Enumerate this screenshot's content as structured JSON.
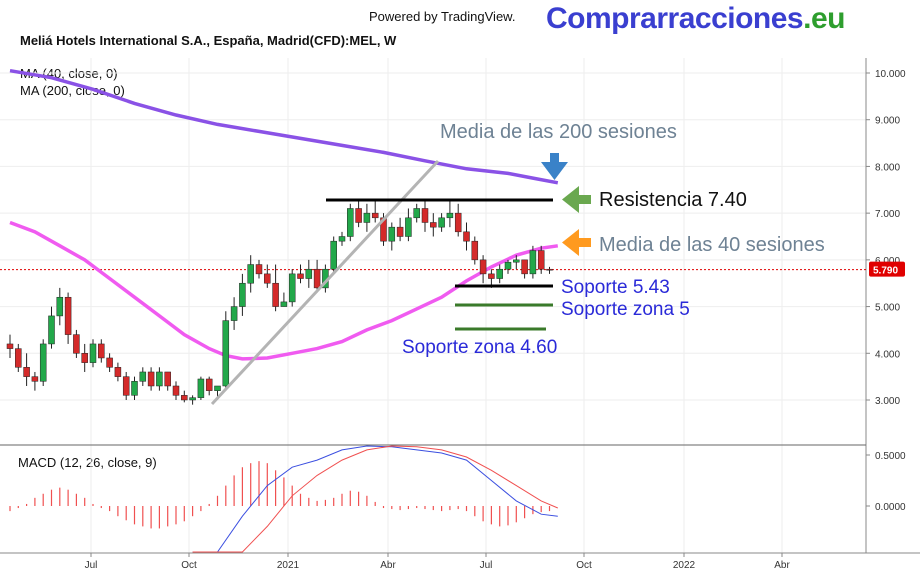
{
  "header": {
    "powered_by": "Powered by TradingView.",
    "brand_main": "Comprarracciones",
    "brand_tld": ".eu",
    "symbol": "Meliá Hotels International S.A., España, Madrid(CFD):MEL, W",
    "ma40_label": "MA (40, close, 0)",
    "ma200_label": "MA (200, close, 0)",
    "macd_label": "MACD (12, 26, close, 9)"
  },
  "colors": {
    "ma200": "#8a52e6",
    "ma40": "#f05bf0",
    "up": "#22a84a",
    "down": "#d42a2a",
    "last_price": "#e00000",
    "macd_line": "#3b4fe0",
    "signal_line": "#f05050",
    "arrow_blue": "#3a82c8",
    "arrow_green": "#6aa84f",
    "arrow_orange": "#ff9a1f",
    "support_green": "#3a7a2a"
  },
  "chart_data": {
    "type": "candlestick",
    "price_axis": {
      "ticks": [
        "10.000",
        "9.000",
        "8.000",
        "7.000",
        "6.000",
        "5.000",
        "4.000",
        "3.000"
      ],
      "values": [
        10,
        9,
        8,
        7,
        6,
        5,
        4,
        3
      ],
      "ylim": [
        2.6,
        10.2
      ]
    },
    "macd_axis": {
      "ticks": [
        "0.5000",
        "0.0000"
      ],
      "values": [
        0.5,
        0.0
      ]
    },
    "time_axis": {
      "labels": [
        "Jul",
        "Oct",
        "2021",
        "Abr",
        "Jul",
        "Oct",
        "2022",
        "Abr"
      ]
    },
    "last_price": {
      "label": "5.790",
      "value": 5.79
    },
    "candles": [
      [
        4.2,
        4.4,
        3.9,
        4.1
      ],
      [
        4.1,
        4.2,
        3.6,
        3.7
      ],
      [
        3.7,
        4.0,
        3.3,
        3.5
      ],
      [
        3.5,
        3.6,
        3.2,
        3.4
      ],
      [
        3.4,
        4.3,
        3.3,
        4.2
      ],
      [
        4.2,
        5.0,
        4.1,
        4.8
      ],
      [
        4.8,
        5.4,
        4.6,
        5.2
      ],
      [
        5.2,
        5.3,
        4.2,
        4.4
      ],
      [
        4.4,
        4.5,
        3.9,
        4.0
      ],
      [
        4.0,
        4.2,
        3.6,
        3.8
      ],
      [
        3.8,
        4.3,
        3.7,
        4.2
      ],
      [
        4.2,
        4.3,
        3.8,
        3.9
      ],
      [
        3.9,
        4.0,
        3.6,
        3.7
      ],
      [
        3.7,
        3.8,
        3.4,
        3.5
      ],
      [
        3.5,
        3.6,
        3.0,
        3.1
      ],
      [
        3.1,
        3.5,
        3.0,
        3.4
      ],
      [
        3.4,
        3.7,
        3.3,
        3.6
      ],
      [
        3.6,
        3.7,
        3.2,
        3.3
      ],
      [
        3.3,
        3.7,
        3.2,
        3.6
      ],
      [
        3.6,
        3.6,
        3.2,
        3.3
      ],
      [
        3.3,
        3.4,
        3.0,
        3.1
      ],
      [
        3.1,
        3.2,
        2.95,
        3.0
      ],
      [
        3.0,
        3.1,
        2.9,
        3.05
      ],
      [
        3.05,
        3.5,
        3.0,
        3.45
      ],
      [
        3.45,
        3.5,
        3.1,
        3.2
      ],
      [
        3.2,
        3.3,
        3.0,
        3.3
      ],
      [
        3.3,
        4.9,
        3.2,
        4.7
      ],
      [
        4.7,
        5.2,
        4.5,
        5.0
      ],
      [
        5.0,
        5.7,
        4.8,
        5.5
      ],
      [
        5.5,
        6.1,
        5.3,
        5.9
      ],
      [
        5.9,
        6.0,
        5.6,
        5.7
      ],
      [
        5.7,
        5.9,
        5.4,
        5.5
      ],
      [
        5.5,
        5.9,
        4.9,
        5.0
      ],
      [
        5.0,
        5.3,
        5.0,
        5.1
      ],
      [
        5.1,
        5.8,
        5.0,
        5.7
      ],
      [
        5.7,
        5.9,
        5.5,
        5.6
      ],
      [
        5.6,
        6.0,
        5.4,
        5.8
      ],
      [
        5.8,
        6.0,
        5.3,
        5.4
      ],
      [
        5.4,
        5.9,
        5.3,
        5.8
      ],
      [
        5.8,
        6.5,
        5.7,
        6.4
      ],
      [
        6.4,
        6.6,
        6.3,
        6.5
      ],
      [
        6.5,
        7.2,
        6.4,
        7.1
      ],
      [
        7.1,
        7.3,
        6.7,
        6.8
      ],
      [
        6.8,
        7.2,
        6.6,
        7.0
      ],
      [
        7.0,
        7.3,
        6.8,
        6.9
      ],
      [
        6.9,
        7.0,
        6.3,
        6.4
      ],
      [
        6.4,
        6.8,
        6.2,
        6.7
      ],
      [
        6.7,
        6.9,
        6.4,
        6.5
      ],
      [
        6.5,
        7.1,
        6.4,
        6.9
      ],
      [
        6.9,
        7.2,
        6.8,
        7.1
      ],
      [
        7.1,
        7.3,
        6.6,
        6.8
      ],
      [
        6.8,
        7.0,
        6.5,
        6.7
      ],
      [
        6.7,
        7.0,
        6.6,
        6.9
      ],
      [
        6.9,
        7.3,
        6.7,
        7.0
      ],
      [
        7.0,
        7.2,
        6.5,
        6.6
      ],
      [
        6.6,
        6.8,
        6.2,
        6.4
      ],
      [
        6.4,
        6.5,
        5.9,
        6.0
      ],
      [
        6.0,
        6.1,
        5.5,
        5.7
      ],
      [
        5.7,
        5.8,
        5.4,
        5.6
      ],
      [
        5.6,
        5.9,
        5.5,
        5.8
      ],
      [
        5.8,
        6.0,
        5.7,
        5.95
      ],
      [
        5.95,
        6.1,
        5.8,
        6.0
      ],
      [
        6.0,
        6.0,
        5.6,
        5.7
      ],
      [
        5.7,
        6.3,
        5.6,
        6.2
      ],
      [
        6.2,
        6.3,
        5.7,
        5.8
      ],
      [
        5.8,
        5.85,
        5.7,
        5.79
      ]
    ],
    "ma40": [
      [
        0,
        6.8
      ],
      [
        3,
        6.6
      ],
      [
        6,
        6.3
      ],
      [
        9,
        6.0
      ],
      [
        12,
        5.6
      ],
      [
        15,
        5.2
      ],
      [
        18,
        4.8
      ],
      [
        21,
        4.4
      ],
      [
        24,
        4.1
      ],
      [
        26,
        3.95
      ],
      [
        28,
        3.88
      ],
      [
        31,
        3.9
      ],
      [
        34,
        4.0
      ],
      [
        37,
        4.1
      ],
      [
        40,
        4.25
      ],
      [
        43,
        4.5
      ],
      [
        46,
        4.7
      ],
      [
        49,
        4.95
      ],
      [
        52,
        5.2
      ],
      [
        55,
        5.55
      ],
      [
        58,
        5.85
      ],
      [
        61,
        6.1
      ],
      [
        64,
        6.25
      ],
      [
        66,
        6.3
      ]
    ],
    "ma200": [
      [
        0,
        10.05
      ],
      [
        5,
        9.9
      ],
      [
        10,
        9.65
      ],
      [
        15,
        9.35
      ],
      [
        20,
        9.1
      ],
      [
        25,
        8.9
      ],
      [
        30,
        8.75
      ],
      [
        35,
        8.6
      ],
      [
        40,
        8.45
      ],
      [
        45,
        8.3
      ],
      [
        50,
        8.12
      ],
      [
        55,
        7.95
      ],
      [
        60,
        7.85
      ],
      [
        63,
        7.75
      ],
      [
        66,
        7.65
      ]
    ],
    "macd_hist": [
      -0.05,
      -0.02,
      0.02,
      0.08,
      0.12,
      0.16,
      0.18,
      0.16,
      0.12,
      0.08,
      0.02,
      -0.02,
      -0.05,
      -0.1,
      -0.14,
      -0.18,
      -0.2,
      -0.22,
      -0.22,
      -0.2,
      -0.18,
      -0.15,
      -0.1,
      -0.05,
      0.02,
      0.1,
      0.2,
      0.3,
      0.38,
      0.42,
      0.44,
      0.42,
      0.35,
      0.28,
      0.2,
      0.12,
      0.08,
      0.05,
      0.06,
      0.08,
      0.12,
      0.15,
      0.14,
      0.1,
      0.04,
      -0.02,
      -0.03,
      -0.04,
      -0.03,
      -0.02,
      -0.03,
      -0.04,
      -0.05,
      -0.04,
      -0.03,
      -0.05,
      -0.1,
      -0.15,
      -0.18,
      -0.2,
      -0.19,
      -0.16,
      -0.12,
      -0.08,
      -0.06,
      -0.05
    ],
    "macd_line": [
      [
        22,
        -0.7
      ],
      [
        25,
        -0.5
      ],
      [
        28,
        -0.1
      ],
      [
        31,
        0.2
      ],
      [
        34,
        0.38
      ],
      [
        37,
        0.45
      ],
      [
        40,
        0.55
      ],
      [
        43,
        0.62
      ],
      [
        46,
        0.58
      ],
      [
        49,
        0.55
      ],
      [
        52,
        0.52
      ],
      [
        55,
        0.45
      ],
      [
        58,
        0.25
      ],
      [
        61,
        0.05
      ],
      [
        64,
        -0.08
      ],
      [
        66,
        -0.1
      ]
    ],
    "signal_line": [
      [
        22,
        -0.9
      ],
      [
        25,
        -0.8
      ],
      [
        28,
        -0.55
      ],
      [
        31,
        -0.2
      ],
      [
        34,
        0.1
      ],
      [
        37,
        0.3
      ],
      [
        40,
        0.45
      ],
      [
        43,
        0.55
      ],
      [
        46,
        0.6
      ],
      [
        49,
        0.58
      ],
      [
        52,
        0.55
      ],
      [
        55,
        0.48
      ],
      [
        58,
        0.35
      ],
      [
        61,
        0.2
      ],
      [
        64,
        0.05
      ],
      [
        66,
        -0.02
      ]
    ]
  },
  "annotations": {
    "media200": "Media de las 200 sesiones",
    "resistencia": "Resistencia 7.40",
    "media40": "Media de las 40 sesiones",
    "soporte1": "Soporte 5.43",
    "soporte2": "Soporte zona 5",
    "soporte3": "Soporte zona 4.60"
  }
}
